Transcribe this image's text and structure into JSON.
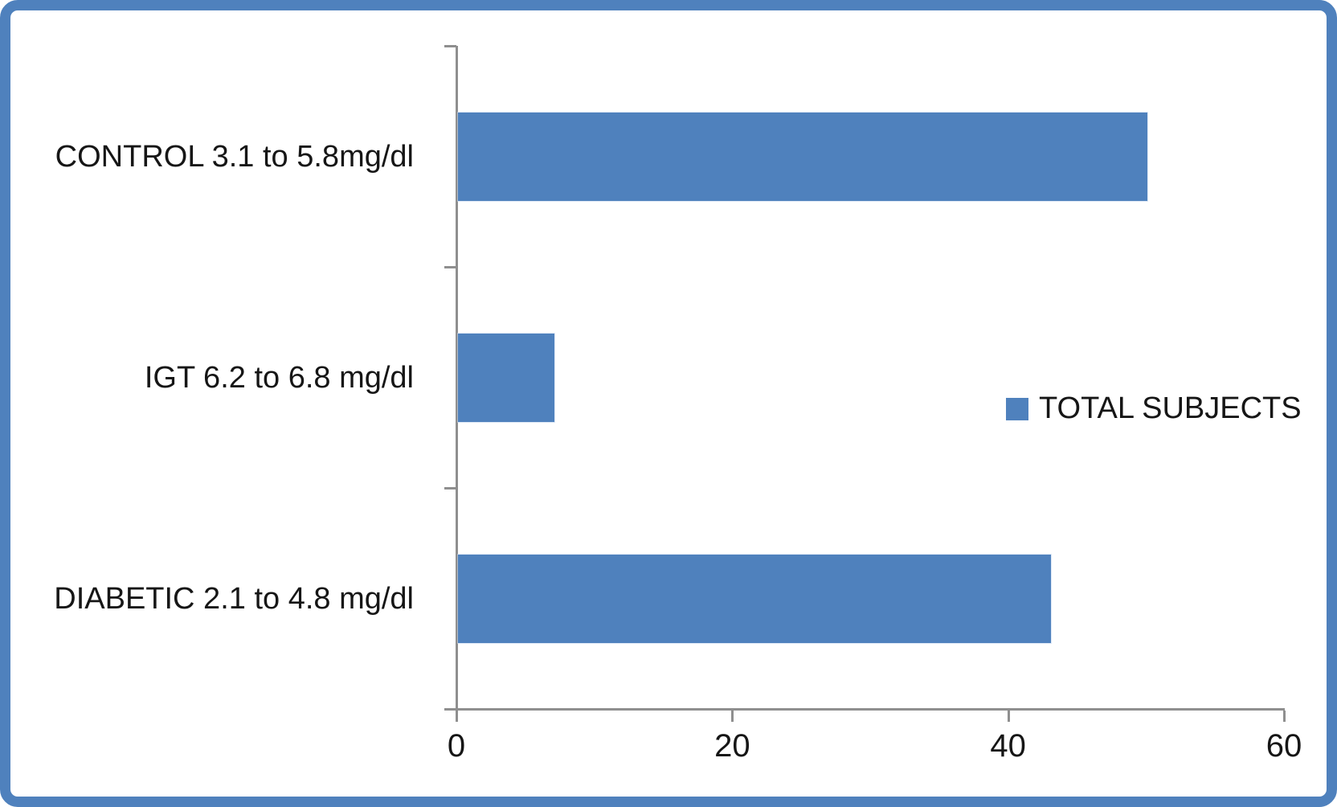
{
  "chart_data": {
    "type": "bar",
    "orientation": "horizontal",
    "title": "",
    "xlabel": "",
    "ylabel": "",
    "categories": [
      "CONTROL 3.1 to 5.8mg/dl",
      "IGT 6.2 to 6.8 mg/dl",
      "DIABETIC 2.1 to 4.8 mg/dl"
    ],
    "series": [
      {
        "name": "TOTAL SUBJECTS",
        "values": [
          50,
          7,
          43
        ]
      }
    ],
    "xlim": [
      0,
      60
    ],
    "x_ticks": [
      0,
      20,
      40,
      60
    ],
    "grid": false,
    "legend": {
      "position": "middle-right",
      "entries": [
        "TOTAL SUBJECTS"
      ]
    },
    "colors": {
      "bar": "#4F81BD",
      "frame_border": "#4F81BD",
      "axis": "#8F8F8F",
      "text": "#161616",
      "background": "#FFFFFF"
    }
  }
}
